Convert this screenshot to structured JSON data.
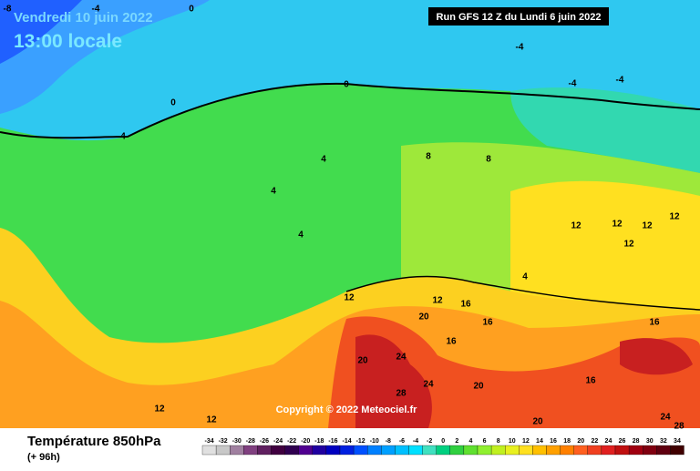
{
  "header": {
    "date": "Vendredi 10 juin 2022",
    "time": "13:00 locale",
    "run": "Run GFS 12 Z du Lundi 6 juin 2022"
  },
  "copyright": "Copyright © 2022 Meteociel.fr",
  "legend": {
    "title": "Température 850hPa",
    "subtitle": "(+ 96h)",
    "scale": [
      -34,
      -32,
      -30,
      -28,
      -26,
      -24,
      -22,
      -20,
      -18,
      -16,
      -14,
      -12,
      -10,
      -8,
      -6,
      -4,
      -2,
      0,
      2,
      4,
      6,
      8,
      10,
      12,
      14,
      16,
      18,
      20,
      22,
      24,
      26,
      28,
      30,
      32,
      34
    ]
  },
  "contour_labels": [
    "-8",
    "-4",
    "0",
    "-4",
    "-4",
    "-4",
    "0",
    "0",
    "4",
    "4",
    "4",
    "8",
    "8",
    "4",
    "12",
    "12",
    "12",
    "12",
    "12",
    "12",
    "16",
    "20",
    "20",
    "24",
    "28",
    "24",
    "20",
    "16",
    "16",
    "20",
    "24",
    "28",
    "12",
    "12",
    "4",
    "16",
    "16",
    "12"
  ]
}
